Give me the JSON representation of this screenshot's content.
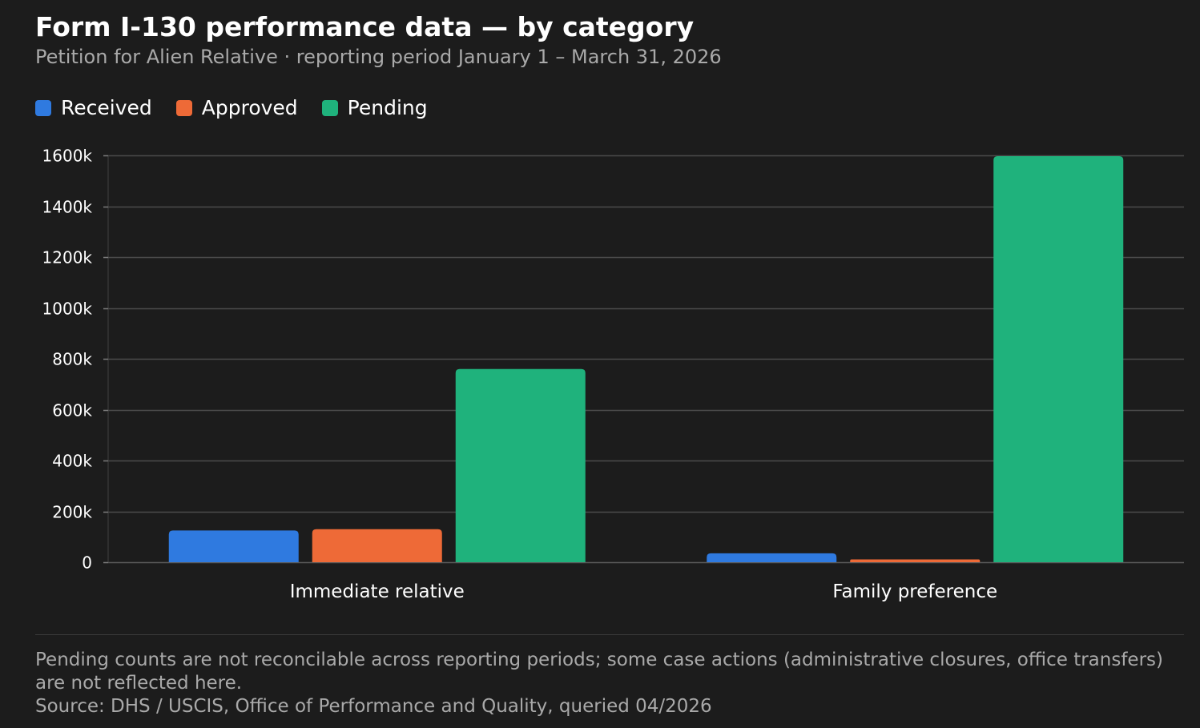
{
  "header": {
    "title": "Form I-130 performance data — by category",
    "subtitle": "Petition for Alien Relative · reporting period January 1 – March 31, 2026"
  },
  "legend": [
    {
      "label": "Received",
      "color": "#2f7ae0"
    },
    {
      "label": "Approved",
      "color": "#ee6a37"
    },
    {
      "label": "Pending",
      "color": "#1fb27c"
    }
  ],
  "chart_data": {
    "type": "bar",
    "categories": [
      "Immediate relative",
      "Family preference"
    ],
    "series": [
      {
        "name": "Received",
        "color": "#2f7ae0",
        "values": [
          125000,
          35000
        ]
      },
      {
        "name": "Approved",
        "color": "#ee6a37",
        "values": [
          130000,
          11000
        ]
      },
      {
        "name": "Pending",
        "color": "#1fb27c",
        "values": [
          760000,
          1597000
        ]
      }
    ],
    "yticks": [
      0,
      200000,
      400000,
      600000,
      800000,
      1000000,
      1200000,
      1400000,
      1600000
    ],
    "ytick_labels": [
      "0",
      "200k",
      "400k",
      "600k",
      "800k",
      "1000k",
      "1200k",
      "1400k",
      "1600k"
    ],
    "ylim": [
      0,
      1600000
    ],
    "grid": true,
    "legend_position": "top-left"
  },
  "footer": {
    "note": "Pending counts are not reconcilable across reporting periods; some case actions (administrative closures, office transfers) are not reflected here.",
    "source": "Source: DHS / USCIS, Office of Performance and Quality, queried 04/2026"
  }
}
